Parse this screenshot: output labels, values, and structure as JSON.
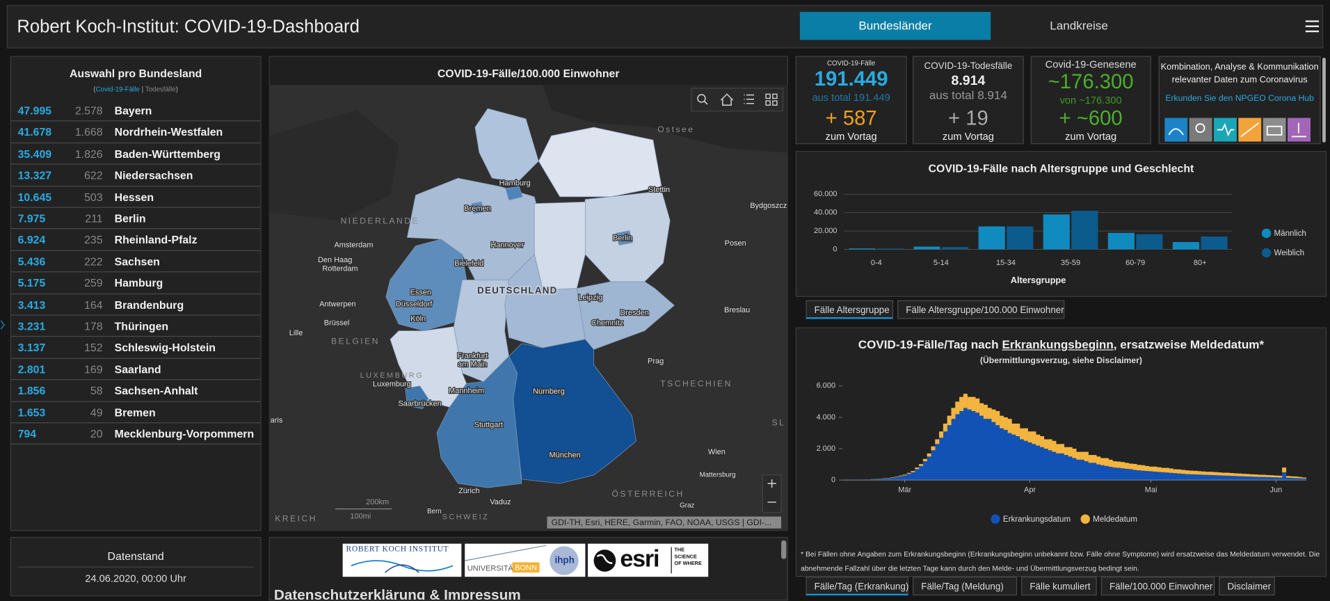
{
  "header": {
    "title": "Robert Koch-Institut: COVID-19-Dashboard",
    "tabs": [
      "Bundesländer",
      "Landkreise"
    ]
  },
  "state_table": {
    "title": "Auswahl pro Bundesland",
    "legend": [
      "(",
      "Covid-19-Fälle",
      "|",
      "Todesfälle",
      ")"
    ],
    "rows": [
      [
        "47.995",
        "2.578",
        "Bayern"
      ],
      [
        "41.678",
        "1.668",
        "Nordrhein-Westfalen"
      ],
      [
        "35.409",
        "1.826",
        "Baden-Württemberg"
      ],
      [
        "13.327",
        "622",
        "Niedersachsen"
      ],
      [
        "10.645",
        "503",
        "Hessen"
      ],
      [
        "7.975",
        "211",
        "Berlin"
      ],
      [
        "6.924",
        "235",
        "Rheinland-Pfalz"
      ],
      [
        "5.436",
        "222",
        "Sachsen"
      ],
      [
        "5.175",
        "259",
        "Hamburg"
      ],
      [
        "3.413",
        "164",
        "Brandenburg"
      ],
      [
        "3.231",
        "178",
        "Thüringen"
      ],
      [
        "3.137",
        "152",
        "Schleswig-Holstein"
      ],
      [
        "2.801",
        "169",
        "Saarland"
      ],
      [
        "1.856",
        "58",
        "Sachsen-Anhalt"
      ],
      [
        "1.653",
        "49",
        "Bremen"
      ],
      [
        "794",
        "20",
        "Mecklenburg-Vorpommern"
      ]
    ]
  },
  "status": {
    "title": "Datenstand",
    "date": "24.06.2020, 00:00 Uhr"
  },
  "map": {
    "title": "COVID-19-Fälle/100.000 Einwohner",
    "labels": [
      "Ostsee",
      "Hamburg",
      "Stettin",
      "Bydgoszcz",
      "Bremen",
      "NIEDERLANDE",
      "Hannover",
      "Berlin",
      "Posen",
      "Amsterdam",
      "Bielefeld",
      "Den Haag",
      "Rotterdam",
      "Essen",
      "DEUTSCHLAND",
      "Leipzig",
      "Düsseldorf",
      "Antwerpen",
      "Breslau",
      "Dresden",
      "Köln",
      "Chemnitz",
      "Brüssel",
      "Lille",
      "BELGIEN",
      "Frankfurt",
      "am Main",
      "Prag",
      "LUXEMBURG",
      "Luxemburg",
      "TSCHECHIEN",
      "Mannheim",
      "Nürnberg",
      "Saarbrücken",
      "Stuttgart",
      "aris",
      "Wien",
      "München",
      "Mattersburg",
      "Zürich",
      "ÖSTERREICH",
      "Vaduz",
      "Graz",
      "Bern",
      "KREICH",
      "SCHWEIZ",
      "SL"
    ],
    "scale": [
      "200km",
      "100mi"
    ],
    "attribution": "GDI-TH, Esri, HERE, Garmin, FAO, NOAA, USGS | GDI-..."
  },
  "logos": {
    "rki": "ROBERT KOCH INSTITUT",
    "bonn": [
      "UNIVERSITÄT",
      "BONN",
      "ihph"
    ],
    "esri": "esri",
    "esri_tagline": [
      "THE",
      "SCIENCE",
      "OF WHERE"
    ],
    "heading": "Datenschutzerklärung & Impressum"
  },
  "kpis": [
    {
      "label": "COVID-19-Fälle",
      "value": "191.449",
      "total": "aus total 191.449",
      "change": "+ 587",
      "change_label": "zum Vortag"
    },
    {
      "label": "COVID-19-Todesfälle",
      "value": "8.914",
      "total": "aus total 8.914",
      "change": "+ 19",
      "change_label": "zum Vortag"
    },
    {
      "label": "Covid-19-Genesene",
      "value": "~176.300",
      "total": "von ~176.300",
      "change": "+ ~600",
      "change_label": "zum Vortag"
    }
  ],
  "hub": {
    "lines": [
      "Kombination, Analyse & Kommunikation",
      "relevanter Daten zum Coronavirus"
    ],
    "link": "Erkunden Sie den NPGEO Corona Hub"
  },
  "age_tabs": [
    "Fälle Altersgruppe",
    "Fälle Altersgruppe/100.000 Einwohner"
  ],
  "daily_tabs": [
    "Fälle/Tag (Erkrankung)",
    "Fälle/Tag (Meldung)",
    "Fälle kumuliert",
    "Fälle/100.000 Einwohner",
    "Disclaimer"
  ],
  "chart_data": [
    {
      "type": "bar",
      "title": "COVID-19-Fälle nach Altersgruppe und Geschlecht",
      "x_label": "Altersgruppe",
      "categories": [
        "0-4",
        "5-14",
        "15-34",
        "35-59",
        "60-79",
        "80+"
      ],
      "series": [
        {
          "name": "Männlich",
          "color": "#108bbf",
          "values": [
            1000,
            3000,
            25000,
            38000,
            18000,
            8000
          ]
        },
        {
          "name": "Weiblich",
          "color": "#0b5b8c",
          "values": [
            900,
            2500,
            25000,
            42000,
            16500,
            14000
          ]
        }
      ],
      "ylim": [
        0,
        60000
      ],
      "yticks": [
        0,
        {
          "value": 20000,
          "label": "20.000"
        },
        {
          "value": 40000,
          "label": "40.000"
        },
        {
          "value": 60000,
          "label": "60.000"
        }
      ],
      "grid": true,
      "legend": "right"
    },
    {
      "type": "stacked_bar",
      "title": "COVID-19-Fälle/Tag nach",
      "title_link": "Erkrankungsbeginn",
      "title_suffix": ", ersatzweise Meldedatum*",
      "subtitle": "(Übermittlungsverzug, siehe Disclaimer)",
      "footnote": "* Bei Fällen ohne Angaben zum Erkrankungsbeginn (Erkrankungsbeginn unbekannt bzw. Fälle ohne Symptome) wird ersatzweise das Meldedatum verwendet. Die abnehmende Fallzahl über die letzten Tage kann durch den Melde- und Übermittlungsverzug bedingt sein.",
      "categories": [
        null,
        null,
        null,
        null,
        null,
        null,
        null,
        null,
        null,
        null,
        null,
        null,
        null,
        null,
        null,
        "Mär",
        null,
        null,
        null,
        null,
        null,
        null,
        null,
        null,
        null,
        null,
        null,
        null,
        null,
        null,
        null,
        null,
        null,
        null,
        null,
        null,
        null,
        null,
        null,
        null,
        null,
        null,
        null,
        null,
        null,
        null,
        "Apr",
        null,
        null,
        null,
        null,
        null,
        null,
        null,
        null,
        null,
        null,
        null,
        null,
        null,
        null,
        null,
        null,
        null,
        null,
        null,
        null,
        null,
        null,
        null,
        null,
        null,
        null,
        null,
        null,
        null,
        "Mai",
        null,
        null,
        null,
        null,
        null,
        null,
        null,
        null,
        null,
        null,
        null,
        null,
        null,
        null,
        null,
        null,
        null,
        null,
        null,
        null,
        null,
        null,
        null,
        null,
        null,
        null,
        null,
        null,
        null,
        null,
        "Jun",
        null,
        null,
        null,
        null,
        null,
        null,
        null
      ],
      "series": [
        {
          "name": "Erkrankungsdatum",
          "color": "#1352b5",
          "values": [
            20,
            20,
            30,
            20,
            30,
            40,
            40,
            50,
            60,
            80,
            100,
            120,
            150,
            200,
            250,
            300,
            400,
            500,
            700,
            900,
            1200,
            1500,
            1900,
            2300,
            2700,
            3100,
            3500,
            3900,
            4200,
            4400,
            4600,
            4500,
            4400,
            4300,
            4100,
            3900,
            3900,
            3700,
            3500,
            3300,
            3200,
            3000,
            2900,
            2800,
            2600,
            2500,
            2400,
            2300,
            2200,
            2100,
            2000,
            1900,
            1800,
            1700,
            1700,
            1600,
            1500,
            1400,
            1300,
            1300,
            1200,
            1100,
            1100,
            1000,
            950,
            900,
            850,
            800,
            780,
            750,
            720,
            700,
            650,
            620,
            600,
            580,
            560,
            540,
            520,
            500,
            480,
            460,
            440,
            420,
            400,
            380,
            370,
            360,
            350,
            340,
            330,
            320,
            310,
            300,
            290,
            280,
            270,
            260,
            250,
            240,
            230,
            220,
            210,
            200,
            200,
            190,
            180,
            170,
            160,
            500,
            150,
            140,
            130,
            120,
            100
          ]
        },
        {
          "name": "Meldedatum",
          "color": "#f3b53f",
          "values": [
            0,
            0,
            0,
            0,
            0,
            0,
            0,
            10,
            10,
            10,
            20,
            20,
            30,
            30,
            40,
            50,
            60,
            80,
            100,
            120,
            150,
            200,
            250,
            300,
            400,
            500,
            600,
            700,
            800,
            900,
            900,
            800,
            900,
            900,
            800,
            900,
            700,
            800,
            900,
            800,
            800,
            900,
            700,
            800,
            700,
            800,
            700,
            800,
            700,
            700,
            600,
            700,
            700,
            600,
            600,
            500,
            600,
            600,
            500,
            500,
            600,
            500,
            500,
            500,
            450,
            500,
            450,
            400,
            400,
            400,
            380,
            350,
            380,
            350,
            350,
            320,
            300,
            320,
            300,
            280,
            300,
            280,
            250,
            260,
            250,
            240,
            230,
            230,
            220,
            210,
            200,
            210,
            200,
            190,
            180,
            190,
            180,
            170,
            170,
            160,
            160,
            150,
            150,
            140,
            140,
            130,
            130,
            120,
            120,
            300,
            110,
            100,
            100,
            80,
            60
          ]
        }
      ],
      "ylim": [
        0,
        6000
      ],
      "yticks": [
        0,
        {
          "value": 2000,
          "label": "2.000"
        },
        {
          "value": 4000,
          "label": "4.000"
        },
        {
          "value": 6000,
          "label": "6.000"
        }
      ],
      "grid": false,
      "legend": "bottom"
    }
  ]
}
